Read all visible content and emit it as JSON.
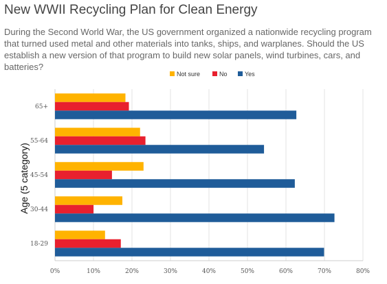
{
  "chart_data": {
    "type": "bar",
    "orientation": "horizontal",
    "title": "New WWII Recycling Plan for Clean Energy",
    "subtitle": "During the Second World War, the US government organized a nationwide recycling program that turned used metal and other materials into tanks, ships, and warplanes. Should the US establish a new version of that program to build new solar panels, wind turbines, cars, and batteries?",
    "ylabel": "Age (5 category)",
    "xlabel": "",
    "categories": [
      "65+",
      "55-64",
      "45-54",
      "30-44",
      "18-29"
    ],
    "series": [
      {
        "name": "Not sure",
        "color": "#FFB300",
        "values": [
          18.3,
          22.1,
          23.0,
          17.5,
          13.0
        ]
      },
      {
        "name": "No",
        "color": "#E8202E",
        "values": [
          19.2,
          23.5,
          14.8,
          10.0,
          17.1
        ]
      },
      {
        "name": "Yes",
        "color": "#1F5C99",
        "values": [
          62.7,
          54.3,
          62.3,
          72.6,
          69.9
        ]
      }
    ],
    "xlim": [
      0,
      80
    ],
    "xticks": [
      "0%",
      "10%",
      "20%",
      "30%",
      "40%",
      "50%",
      "60%",
      "70%",
      "80%"
    ],
    "grid": true,
    "legend_position": "top"
  }
}
